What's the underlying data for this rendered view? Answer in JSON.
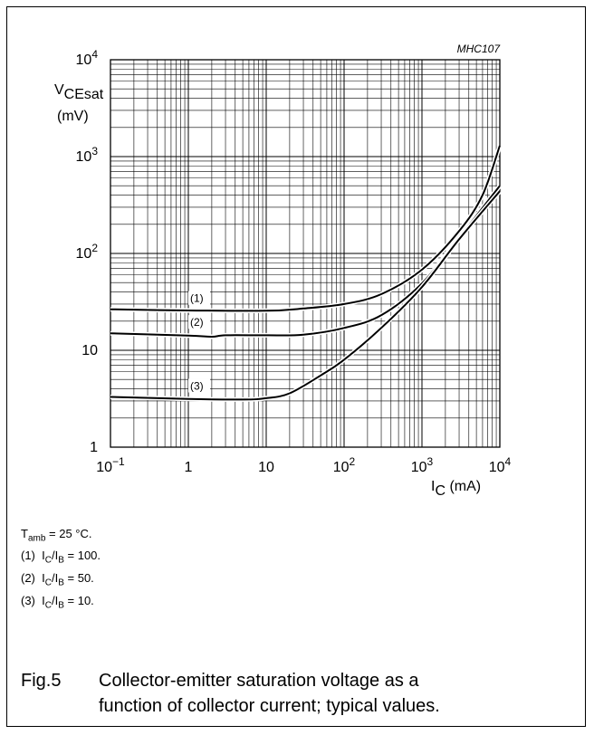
{
  "chart_data": {
    "type": "line",
    "code": "MHC107",
    "x_scale": "log",
    "y_scale": "log",
    "xlim": [
      0.1,
      10000
    ],
    "ylim": [
      1,
      10000
    ],
    "grid": true,
    "x_ticks": [
      {
        "base": "10",
        "exp": "−1"
      },
      {
        "base": "1",
        "exp": ""
      },
      {
        "base": "10",
        "exp": ""
      },
      {
        "base": "10",
        "exp": "2"
      },
      {
        "base": "10",
        "exp": "3"
      },
      {
        "base": "10",
        "exp": "4"
      }
    ],
    "y_ticks": [
      {
        "base": "1",
        "exp": ""
      },
      {
        "base": "10",
        "exp": ""
      },
      {
        "base": "10",
        "exp": "2"
      },
      {
        "base": "10",
        "exp": "3"
      },
      {
        "base": "10",
        "exp": "4"
      }
    ],
    "xlabel": {
      "main": "I",
      "sub": "C",
      "unit": " (mA)"
    },
    "ylabel": {
      "main": "V",
      "sub": "CEsat",
      "unit": "(mV)"
    },
    "series": [
      {
        "label": "(1)",
        "x": [
          0.1,
          1,
          10,
          30,
          100,
          300,
          1000,
          3000,
          6000,
          10000
        ],
        "y": [
          26.5,
          25.8,
          25.6,
          27,
          30,
          38,
          68,
          170,
          400,
          1300
        ]
      },
      {
        "label": "(2)",
        "x": [
          0.1,
          1,
          2,
          3,
          10,
          30,
          100,
          300,
          1000,
          3000,
          10000
        ],
        "y": [
          15,
          14.2,
          13.8,
          14.3,
          14.3,
          14.5,
          17,
          23,
          49,
          145,
          500
        ]
      },
      {
        "label": "(3)",
        "x": [
          0.1,
          1,
          5,
          10,
          20,
          50,
          100,
          300,
          1000,
          3000,
          10000
        ],
        "y": [
          3.3,
          3.15,
          3.1,
          3.2,
          3.6,
          5.5,
          8,
          17,
          45,
          140,
          440
        ]
      }
    ]
  },
  "notes": {
    "tamb": {
      "main": "T",
      "sub": "amb",
      "rest": " = 25 °C."
    },
    "items": [
      {
        "num": "(1)",
        "i": "I",
        "c": "C",
        "b": "B",
        "value": " = 100."
      },
      {
        "num": "(2)",
        "i": "I",
        "c": "C",
        "b": "B",
        "value": " = 50."
      },
      {
        "num": "(3)",
        "i": "I",
        "c": "C",
        "b": "B",
        "value": " = 10."
      }
    ]
  },
  "caption": {
    "fig": "Fig.5",
    "line1": "Collector-emitter saturation voltage as a",
    "line2": "function of collector current; typical values."
  }
}
